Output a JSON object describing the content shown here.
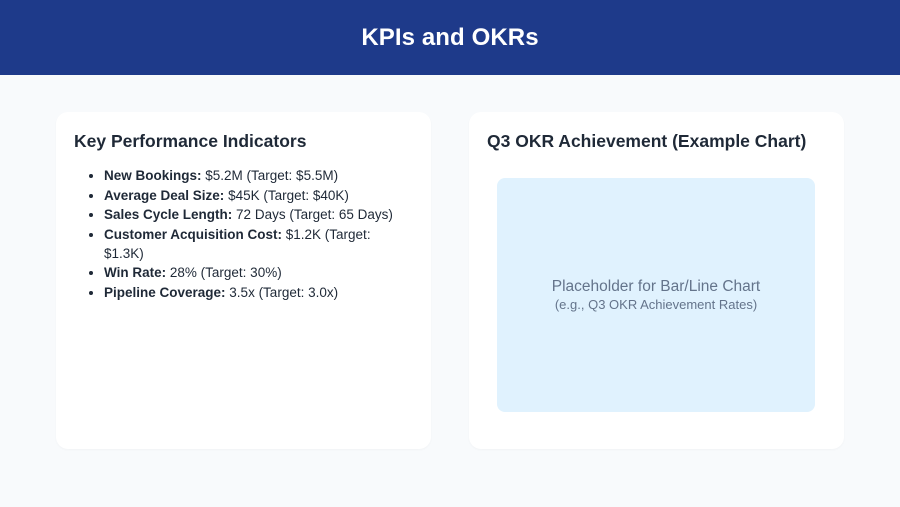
{
  "header": {
    "title": "KPIs and OKRs",
    "background_color": "#1e3a8a"
  },
  "kpi_card": {
    "title": "Key Performance Indicators",
    "items": [
      {
        "label": "New Bookings:",
        "value": " $5.2M (Target: $5.5M)"
      },
      {
        "label": "Average Deal Size:",
        "value": " $45K (Target: $40K)"
      },
      {
        "label": "Sales Cycle Length:",
        "value": " 72 Days (Target: 65 Days)"
      },
      {
        "label": "Customer Acquisition Cost:",
        "value": " $1.2K (Target: $1.3K)"
      },
      {
        "label": "Win Rate:",
        "value": " 28% (Target: 30%)"
      },
      {
        "label": "Pipeline Coverage:",
        "value": " 3.5x (Target: 3.0x)"
      }
    ]
  },
  "okr_card": {
    "title": "Q3 OKR Achievement (Example Chart)",
    "placeholder": {
      "main_text": "Placeholder for Bar/Line Chart",
      "sub_text": "(e.g., Q3 OKR Achievement Rates)",
      "background_color": "#e0f2fe"
    }
  }
}
